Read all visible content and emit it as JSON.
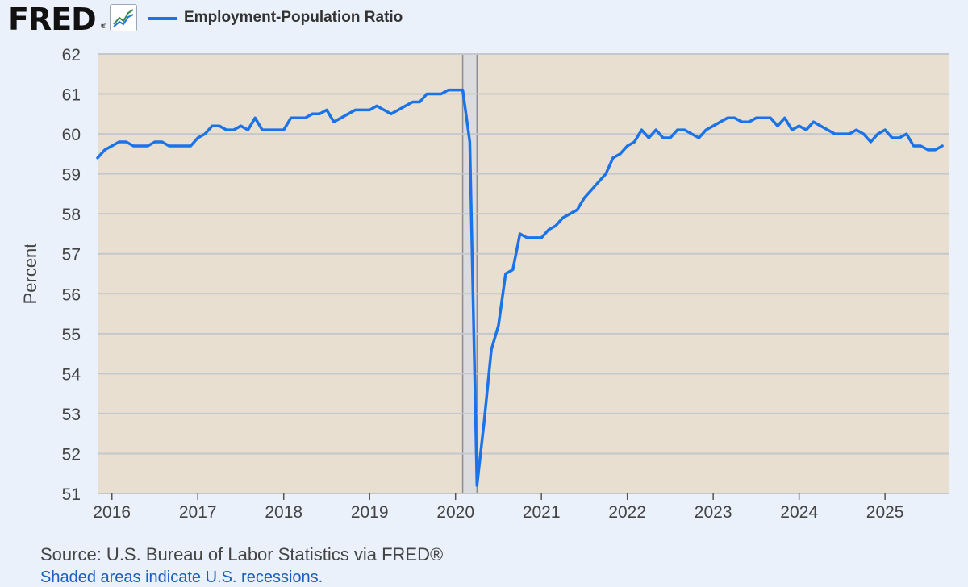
{
  "header": {
    "logo_text": "FRED",
    "logo_mark": "®",
    "chart_icon": "line-chart-icon",
    "legend_label": "Employment-Population Ratio"
  },
  "source_text": "Source: U.S. Bureau of Labor Statistics via FRED®",
  "footer_link_text": "Shaded areas indicate U.S. recessions.",
  "colors": {
    "line": "#1a73e8",
    "plot_background": "#e8dfd0",
    "page_background": "#eaf1fb",
    "recession_shading": "#dcdcde",
    "grid": "#c4c7cc"
  },
  "chart_data": {
    "type": "line",
    "title": "",
    "xlabel": "",
    "ylabel": "Percent",
    "ylim": [
      51,
      62
    ],
    "yticks": [
      51,
      52,
      53,
      54,
      55,
      56,
      57,
      58,
      59,
      60,
      61,
      62
    ],
    "xlim": [
      "2015-11-01",
      "2025-10-01"
    ],
    "xticks": [
      "2016",
      "2017",
      "2018",
      "2019",
      "2020",
      "2021",
      "2022",
      "2023",
      "2024",
      "2025"
    ],
    "grid": true,
    "legend": "top-left",
    "recessions": [
      {
        "start": "2020-02-01",
        "end": "2020-04-01"
      }
    ],
    "series": [
      {
        "name": "Employment-Population Ratio",
        "start": "2015-11",
        "frequency": "monthly",
        "values": [
          59.4,
          59.6,
          59.7,
          59.8,
          59.8,
          59.7,
          59.7,
          59.7,
          59.8,
          59.8,
          59.7,
          59.7,
          59.7,
          59.7,
          59.9,
          60.0,
          60.2,
          60.2,
          60.1,
          60.1,
          60.2,
          60.1,
          60.4,
          60.1,
          60.1,
          60.1,
          60.1,
          60.4,
          60.4,
          60.4,
          60.5,
          60.5,
          60.6,
          60.3,
          60.4,
          60.5,
          60.6,
          60.6,
          60.6,
          60.7,
          60.6,
          60.5,
          60.6,
          60.7,
          60.8,
          60.8,
          61.0,
          61.0,
          61.0,
          61.1,
          61.1,
          61.1,
          59.8,
          51.2,
          52.8,
          54.6,
          55.2,
          56.5,
          56.6,
          57.5,
          57.4,
          57.4,
          57.4,
          57.6,
          57.7,
          57.9,
          58.0,
          58.1,
          58.4,
          58.6,
          58.8,
          59.0,
          59.4,
          59.5,
          59.7,
          59.8,
          60.1,
          59.9,
          60.1,
          59.9,
          59.9,
          60.1,
          60.1,
          60.0,
          59.9,
          60.1,
          60.2,
          60.3,
          60.4,
          60.4,
          60.3,
          60.3,
          60.4,
          60.4,
          60.4,
          60.2,
          60.4,
          60.1,
          60.2,
          60.1,
          60.3,
          60.2,
          60.1,
          60.0,
          60.0,
          60.0,
          60.1,
          60.0,
          59.8,
          60.0,
          60.1,
          59.9,
          59.9,
          60.0,
          59.7,
          59.7,
          59.6,
          59.6,
          59.7
        ]
      }
    ]
  }
}
